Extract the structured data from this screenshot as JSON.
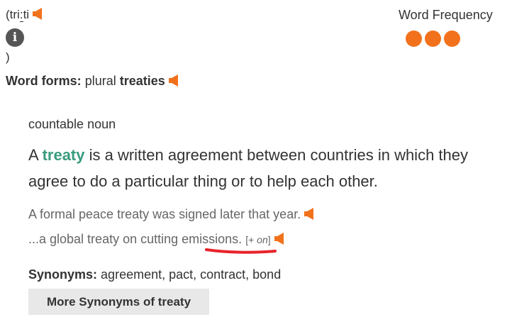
{
  "pronunciation": {
    "open": "(tri",
    "mark": ":",
    "rest": "ti",
    "close": ")"
  },
  "word_frequency": {
    "label": "Word Frequency",
    "level": 3,
    "max": 3,
    "color": "#f2711c"
  },
  "word_forms": {
    "label": "Word forms:",
    "type": "plural",
    "form": "treaties"
  },
  "entry": {
    "part_of_speech": "countable noun",
    "definition_before": "A ",
    "keyword": "treaty",
    "definition_after": " is a written agreement between countries in which they agree to do a particular thing or to help each other.",
    "examples": [
      {
        "text": "A formal peace treaty was signed later that year."
      },
      {
        "text_before": "...a global treaty on cutting ",
        "highlight": "emissions",
        "text_after": ".",
        "grammar_open": "[+ ",
        "grammar_word": "on",
        "grammar_close": "]"
      }
    ],
    "synonyms_label": "Synonyms:",
    "synonyms": "agreement, pact, contract, bond",
    "more_synonyms_button": "More Synonyms of treaty"
  },
  "icons": {
    "speaker": "speaker-icon",
    "info": "info-icon",
    "info_glyph": "i"
  },
  "colors": {
    "accent": "#f2711c",
    "keyword": "#3a9b7f",
    "underline": "#e8232b"
  }
}
